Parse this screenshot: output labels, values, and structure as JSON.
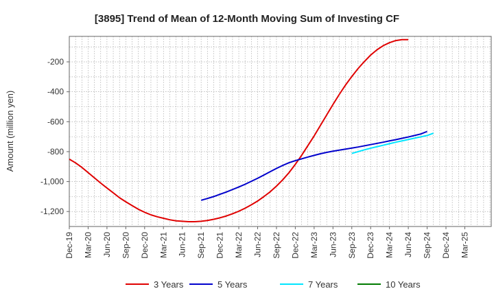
{
  "chart_data": {
    "type": "line",
    "title": "[3895]  Trend of Mean of 12-Month Moving Sum of Investing CF",
    "xlabel": "",
    "ylabel": "Amount (million yen)",
    "ylim": [
      -1300,
      -30
    ],
    "yticks": [
      -200,
      -400,
      -600,
      -800,
      -1000,
      -1200
    ],
    "ytick_labels": [
      "-200",
      "-400",
      "-600",
      "-800",
      "-1,000",
      "-1,200"
    ],
    "xticks": [
      "Dec-19",
      "Mar-20",
      "Jun-20",
      "Sep-20",
      "Dec-20",
      "Mar-21",
      "Jun-21",
      "Sep-21",
      "Dec-21",
      "Mar-22",
      "Jun-22",
      "Sep-22",
      "Dec-22",
      "Mar-23",
      "Jun-23",
      "Sep-23",
      "Dec-23",
      "Mar-24",
      "Jun-24",
      "Sep-24",
      "Dec-24",
      "Mar-25"
    ],
    "x_extra_last": "Mar-25",
    "grid": true,
    "legend_position": "bottom",
    "series": [
      {
        "name": "3 Years",
        "color": "#e00000",
        "start": "Dec-19",
        "values": [
          -850,
          -875,
          -905,
          -940,
          -975,
          -1010,
          -1043,
          -1075,
          -1108,
          -1135,
          -1160,
          -1185,
          -1205,
          -1222,
          -1235,
          -1245,
          -1255,
          -1262,
          -1265,
          -1268,
          -1268,
          -1265,
          -1260,
          -1252,
          -1242,
          -1230,
          -1215,
          -1198,
          -1178,
          -1155,
          -1130,
          -1100,
          -1068,
          -1030,
          -988,
          -940,
          -885,
          -825,
          -760,
          -695,
          -625,
          -555,
          -485,
          -418,
          -355,
          -298,
          -245,
          -198,
          -155,
          -120,
          -92,
          -72,
          -58,
          -52,
          -52
        ]
      },
      {
        "name": "5 Years",
        "color": "#0000cc",
        "start": "Sep-21",
        "values": [
          -1125,
          -1113,
          -1100,
          -1085,
          -1070,
          -1053,
          -1036,
          -1018,
          -998,
          -978,
          -956,
          -934,
          -912,
          -892,
          -874,
          -860,
          -848,
          -836,
          -825,
          -814,
          -805,
          -797,
          -790,
          -783,
          -776,
          -769,
          -761,
          -753,
          -745,
          -737,
          -728,
          -720,
          -711,
          -702,
          -692,
          -682,
          -665
        ]
      },
      {
        "name": "7 Years",
        "color": "#00e5ff",
        "start": "Sep-23",
        "values": [
          -812,
          -800,
          -788,
          -777,
          -767,
          -757,
          -747,
          -737,
          -728,
          -719,
          -710,
          -701,
          -692,
          -677
        ]
      },
      {
        "name": "10 Years",
        "color": "#007a00",
        "start": "Sep-24",
        "values": []
      }
    ]
  }
}
